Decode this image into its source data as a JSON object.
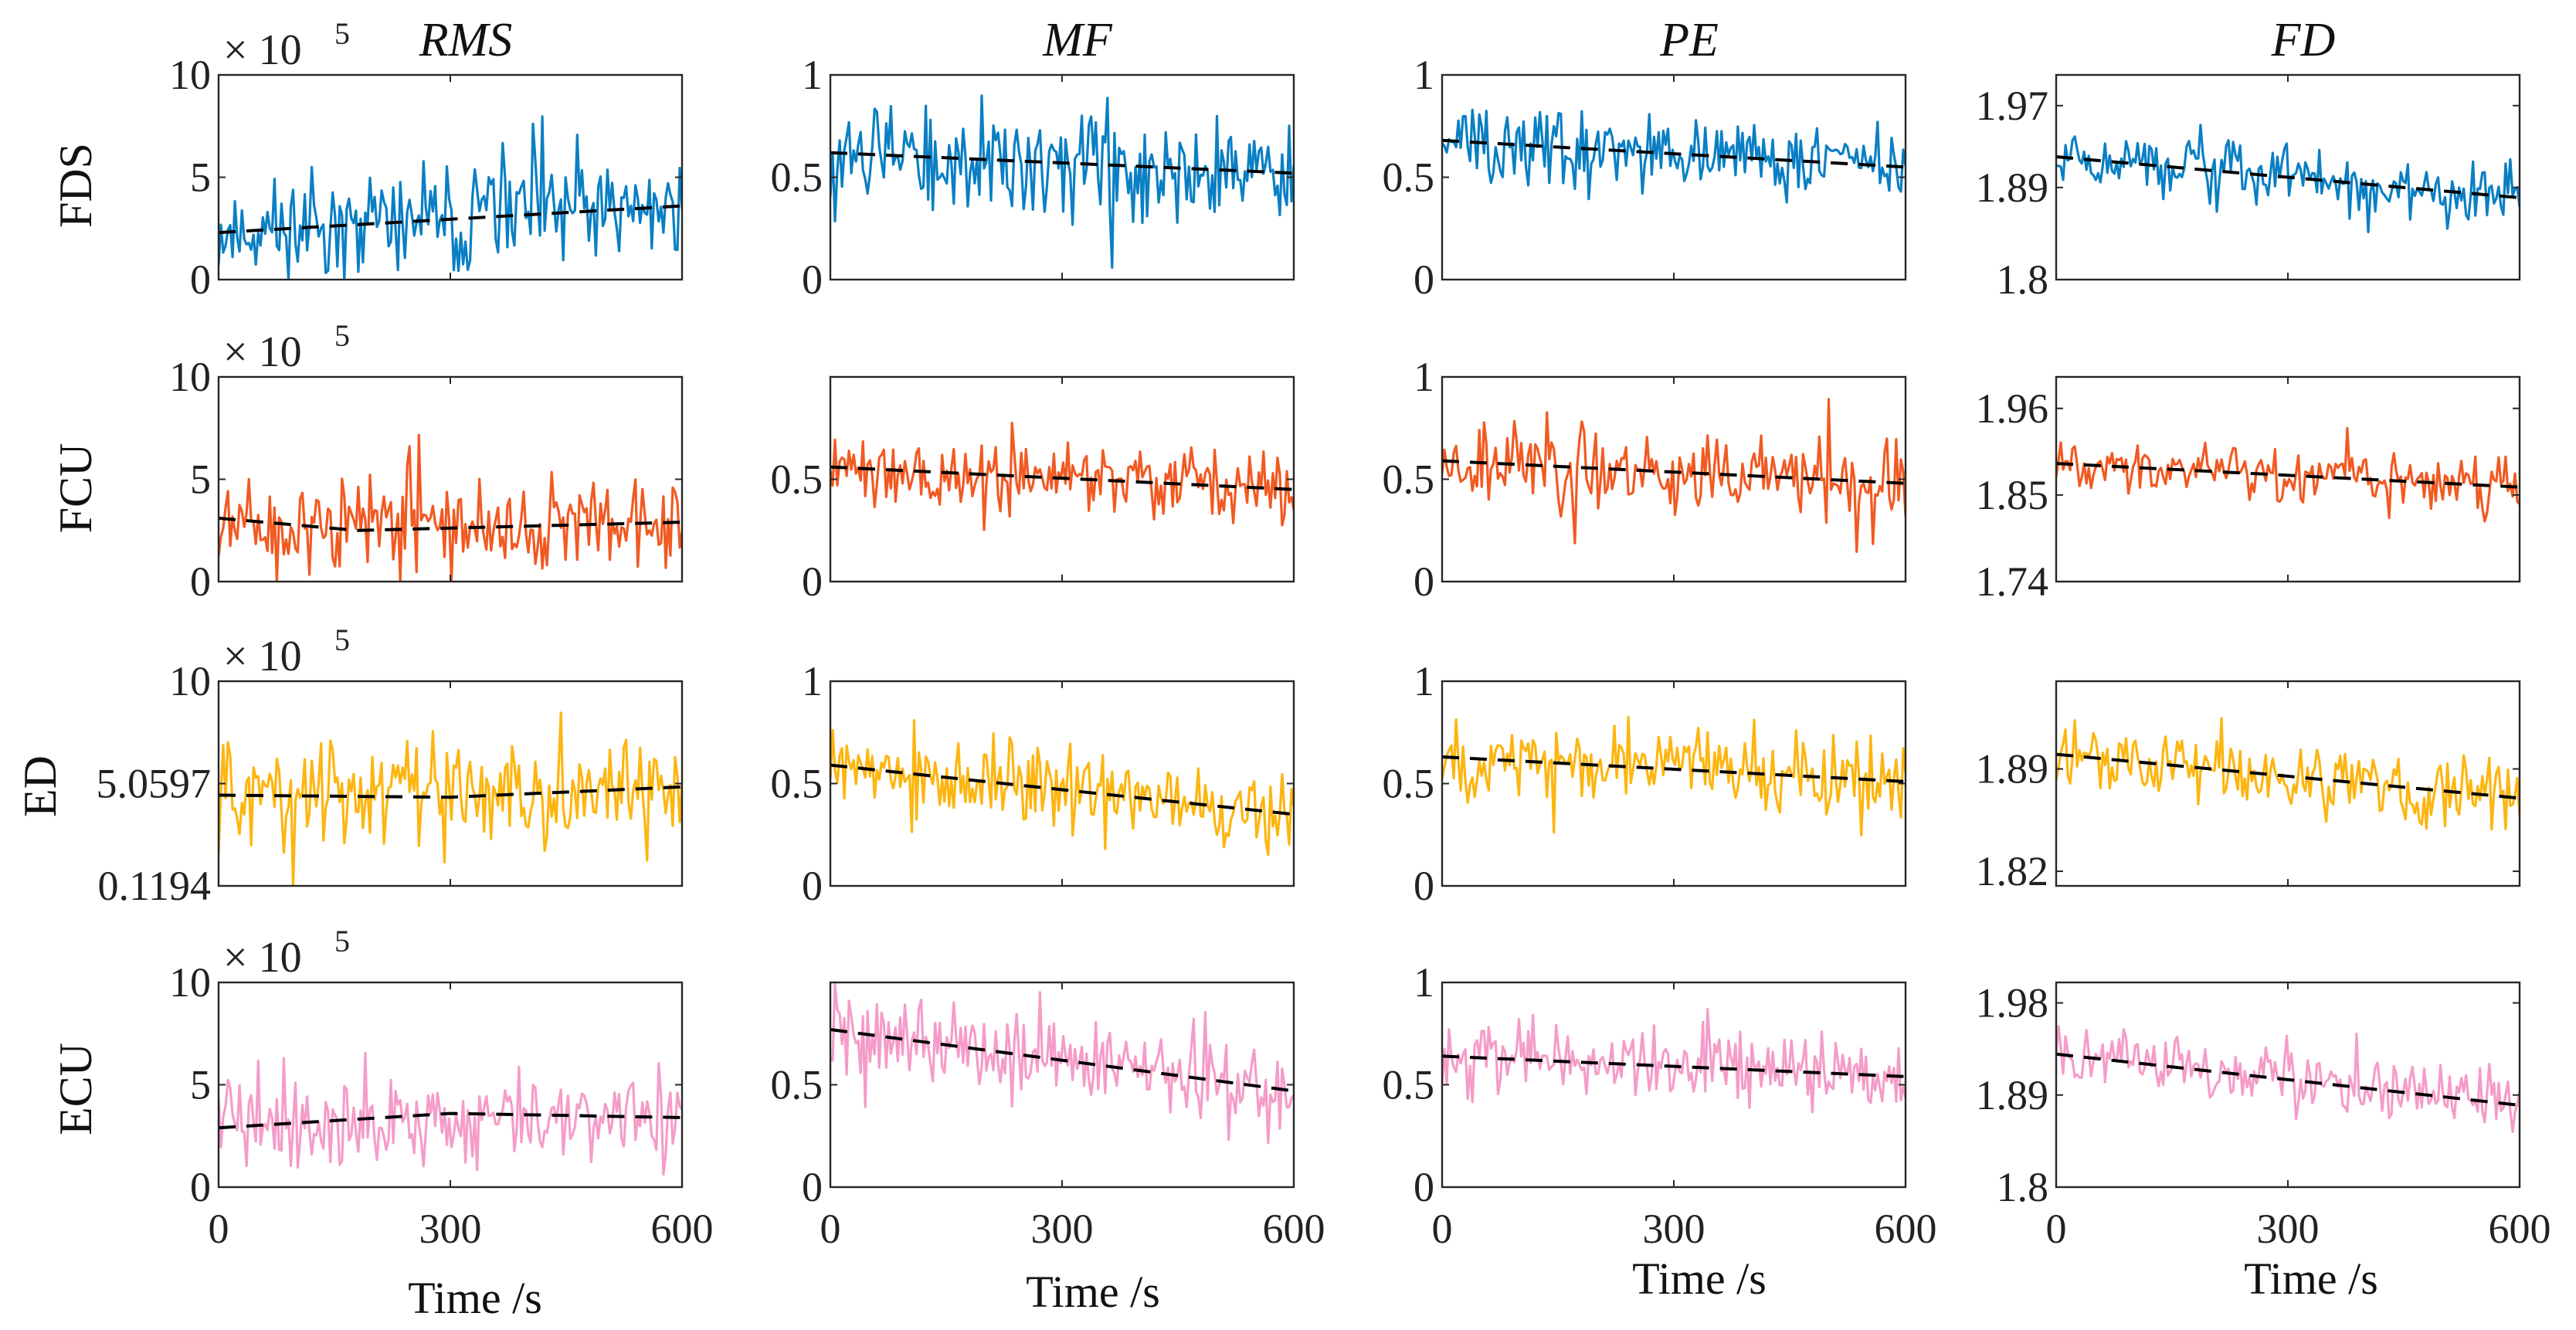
{
  "chart_data": {
    "type": "line",
    "title": "",
    "columns": [
      "RMS",
      "MF",
      "PE",
      "FD"
    ],
    "rows": [
      "FDS",
      "FCU",
      "ED",
      "ECU"
    ],
    "row_colors": {
      "FDS": "#0A7FC4",
      "FCU": "#F15A22",
      "ED": "#FDB510",
      "ECU": "#F59CC9"
    },
    "trend_color": "#000000",
    "xlabel": "Time /s",
    "xlim": [
      0,
      600
    ],
    "xticks": [
      "0",
      "300",
      "600"
    ],
    "multiplier": {
      "base": "× 10",
      "exponent": "5"
    },
    "n_points": 200,
    "panels": [
      {
        "row": "FDS",
        "col": "RMS",
        "ylim": [
          0,
          10
        ],
        "yticks": [
          {
            "value": 0,
            "label": "0"
          },
          {
            "value": 5,
            "label": "5"
          },
          {
            "value": 10,
            "label": "10"
          }
        ],
        "show_multiplier": true,
        "trend": [
          [
            0,
            2.3
          ],
          [
            600,
            3.6
          ]
        ],
        "mean_start": 2.3,
        "mean_end": 3.6,
        "noise": 2.0,
        "seed": 11
      },
      {
        "row": "FDS",
        "col": "MF",
        "ylim": [
          0,
          1
        ],
        "yticks": [
          {
            "value": 0,
            "label": "0"
          },
          {
            "value": 0.5,
            "label": "0.5"
          },
          {
            "value": 1,
            "label": "1"
          }
        ],
        "show_multiplier": false,
        "trend": [
          [
            0,
            0.62
          ],
          [
            600,
            0.52
          ]
        ],
        "mean_start": 0.62,
        "mean_end": 0.52,
        "noise": 0.2,
        "seed": 12
      },
      {
        "row": "FDS",
        "col": "PE",
        "ylim": [
          0,
          1
        ],
        "yticks": [
          {
            "value": 0,
            "label": "0"
          },
          {
            "value": 0.5,
            "label": "0.5"
          },
          {
            "value": 1,
            "label": "1"
          }
        ],
        "show_multiplier": false,
        "trend": [
          [
            0,
            0.68
          ],
          [
            600,
            0.55
          ]
        ],
        "mean_start": 0.68,
        "mean_end": 0.55,
        "noise": 0.13,
        "seed": 13
      },
      {
        "row": "FDS",
        "col": "FD",
        "ylim": [
          1.8,
          2.0
        ],
        "yticks": [
          {
            "value": 1.8,
            "label": "1.8"
          },
          {
            "value": 1.89,
            "label": "1.89"
          },
          {
            "value": 1.97,
            "label": "1.97"
          }
        ],
        "show_multiplier": false,
        "trend": [
          [
            0,
            1.92
          ],
          [
            600,
            1.88
          ]
        ],
        "mean_start": 1.92,
        "mean_end": 1.88,
        "noise": 0.022,
        "seed": 14
      },
      {
        "row": "FCU",
        "col": "RMS",
        "ylim": [
          0,
          10
        ],
        "yticks": [
          {
            "value": 0,
            "label": "0"
          },
          {
            "value": 5,
            "label": "5"
          },
          {
            "value": 10,
            "label": "10"
          }
        ],
        "show_multiplier": true,
        "trend": [
          [
            0,
            3.1
          ],
          [
            180,
            2.5
          ],
          [
            600,
            2.9
          ]
        ],
        "mean_start": 3.0,
        "mean_end": 2.8,
        "noise": 1.6,
        "seed": 21
      },
      {
        "row": "FCU",
        "col": "MF",
        "ylim": [
          0,
          1
        ],
        "yticks": [
          {
            "value": 0,
            "label": "0"
          },
          {
            "value": 0.5,
            "label": "0.5"
          }
        ],
        "show_multiplier": false,
        "trend": [
          [
            0,
            0.56
          ],
          [
            600,
            0.45
          ]
        ],
        "mean_start": 0.56,
        "mean_end": 0.45,
        "noise": 0.13,
        "seed": 22
      },
      {
        "row": "FCU",
        "col": "PE",
        "ylim": [
          0,
          1
        ],
        "yticks": [
          {
            "value": 0,
            "label": "0"
          },
          {
            "value": 0.5,
            "label": "0.5"
          },
          {
            "value": 1,
            "label": "1"
          }
        ],
        "show_multiplier": false,
        "trend": [
          [
            0,
            0.59
          ],
          [
            600,
            0.48
          ]
        ],
        "mean_start": 0.59,
        "mean_end": 0.48,
        "noise": 0.15,
        "seed": 23
      },
      {
        "row": "FCU",
        "col": "FD",
        "ylim": [
          1.74,
          2.0
        ],
        "yticks": [
          {
            "value": 1.74,
            "label": "1.74"
          },
          {
            "value": 1.85,
            "label": "1.85"
          },
          {
            "value": 1.96,
            "label": "1.96"
          }
        ],
        "show_multiplier": false,
        "trend": [
          [
            0,
            1.89
          ],
          [
            600,
            1.86
          ]
        ],
        "mean_start": 1.89,
        "mean_end": 1.86,
        "noise": 0.025,
        "seed": 24
      },
      {
        "row": "ED",
        "col": "RMS",
        "ylim": [
          0.1194,
          10
        ],
        "yticks": [
          {
            "value": 0.1194,
            "label": "0.1194"
          },
          {
            "value": 5.0597,
            "label": "5.0597"
          },
          {
            "value": 10,
            "label": "10"
          }
        ],
        "show_multiplier": true,
        "trend": [
          [
            0,
            4.5
          ],
          [
            300,
            4.4
          ],
          [
            600,
            4.9
          ]
        ],
        "mean_start": 4.5,
        "mean_end": 4.8,
        "noise": 2.0,
        "seed": 31
      },
      {
        "row": "ED",
        "col": "MF",
        "ylim": [
          0,
          1
        ],
        "yticks": [
          {
            "value": 0,
            "label": "0"
          },
          {
            "value": 0.5,
            "label": "0.5"
          },
          {
            "value": 1,
            "label": "1"
          }
        ],
        "show_multiplier": false,
        "trend": [
          [
            0,
            0.59
          ],
          [
            600,
            0.35
          ]
        ],
        "mean_start": 0.59,
        "mean_end": 0.35,
        "noise": 0.16,
        "seed": 32
      },
      {
        "row": "ED",
        "col": "PE",
        "ylim": [
          0,
          1
        ],
        "yticks": [
          {
            "value": 0,
            "label": "0"
          },
          {
            "value": 0.5,
            "label": "0.5"
          },
          {
            "value": 1,
            "label": "1"
          }
        ],
        "show_multiplier": false,
        "trend": [
          [
            0,
            0.63
          ],
          [
            600,
            0.51
          ]
        ],
        "mean_start": 0.63,
        "mean_end": 0.51,
        "noise": 0.15,
        "seed": 33
      },
      {
        "row": "ED",
        "col": "FD",
        "ylim": [
          1.81,
          1.95
        ],
        "yticks": [
          {
            "value": 1.82,
            "label": "1.82"
          },
          {
            "value": 1.89,
            "label": "1.89"
          }
        ],
        "show_multiplier": false,
        "trend": [
          [
            0,
            1.9
          ],
          [
            600,
            1.87
          ]
        ],
        "mean_start": 1.9,
        "mean_end": 1.87,
        "noise": 0.018,
        "seed": 34
      },
      {
        "row": "ECU",
        "col": "RMS",
        "ylim": [
          0,
          10
        ],
        "yticks": [
          {
            "value": 0,
            "label": "0"
          },
          {
            "value": 5,
            "label": "5"
          },
          {
            "value": 10,
            "label": "10"
          }
        ],
        "show_multiplier": true,
        "trend": [
          [
            0,
            2.9
          ],
          [
            300,
            3.6
          ],
          [
            600,
            3.4
          ]
        ],
        "mean_start": 3.0,
        "mean_end": 3.4,
        "noise": 1.7,
        "seed": 41
      },
      {
        "row": "ECU",
        "col": "MF",
        "ylim": [
          0,
          1
        ],
        "yticks": [
          {
            "value": 0,
            "label": "0"
          },
          {
            "value": 0.5,
            "label": "0.5"
          }
        ],
        "show_multiplier": false,
        "trend": [
          [
            0,
            0.77
          ],
          [
            600,
            0.47
          ]
        ],
        "mean_start": 0.75,
        "mean_end": 0.47,
        "noise": 0.16,
        "seed": 42
      },
      {
        "row": "ECU",
        "col": "PE",
        "ylim": [
          0,
          1
        ],
        "yticks": [
          {
            "value": 0,
            "label": "0"
          },
          {
            "value": 0.5,
            "label": "0.5"
          },
          {
            "value": 1,
            "label": "1"
          }
        ],
        "show_multiplier": false,
        "trend": [
          [
            0,
            0.64
          ],
          [
            600,
            0.54
          ]
        ],
        "mean_start": 0.64,
        "mean_end": 0.54,
        "noise": 0.14,
        "seed": 43
      },
      {
        "row": "ECU",
        "col": "FD",
        "ylim": [
          1.8,
          2.0
        ],
        "yticks": [
          {
            "value": 1.8,
            "label": "1.8"
          },
          {
            "value": 1.89,
            "label": "1.89"
          },
          {
            "value": 1.98,
            "label": "1.98"
          }
        ],
        "show_multiplier": false,
        "trend": [
          [
            0,
            1.93
          ],
          [
            600,
            1.88
          ]
        ],
        "mean_start": 1.93,
        "mean_end": 1.88,
        "noise": 0.022,
        "seed": 44
      }
    ]
  }
}
